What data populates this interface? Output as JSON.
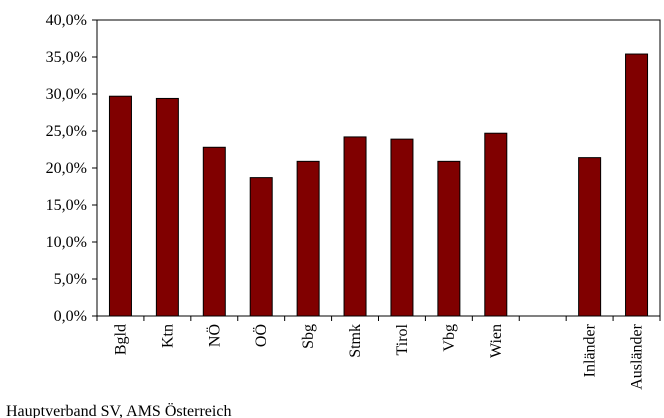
{
  "chart_data": {
    "type": "bar",
    "categories": [
      "Bgld",
      "Ktn",
      "NÖ",
      "OÖ",
      "Sbg",
      "Stmk",
      "Tirol",
      "Vbg",
      "Wien",
      null,
      "Inländer",
      "Ausländer"
    ],
    "values": [
      29.7,
      29.4,
      22.8,
      18.7,
      20.9,
      24.2,
      23.9,
      20.9,
      24.7,
      null,
      21.4,
      35.4
    ],
    "color": "#800000",
    "ylim": [
      0,
      40
    ],
    "yticks": [
      {
        "value": 0,
        "label": "0,0%"
      },
      {
        "value": 5,
        "label": "5,0%"
      },
      {
        "value": 10,
        "label": "10,0%"
      },
      {
        "value": 15,
        "label": "15,0%"
      },
      {
        "value": 20,
        "label": "20,0%"
      },
      {
        "value": 25,
        "label": "25,0%"
      },
      {
        "value": 30,
        "label": "30,0%"
      },
      {
        "value": 35,
        "label": "35,0%"
      },
      {
        "value": 40,
        "label": "40,0%"
      }
    ],
    "source": "Hauptverband SV, AMS Österreich"
  }
}
